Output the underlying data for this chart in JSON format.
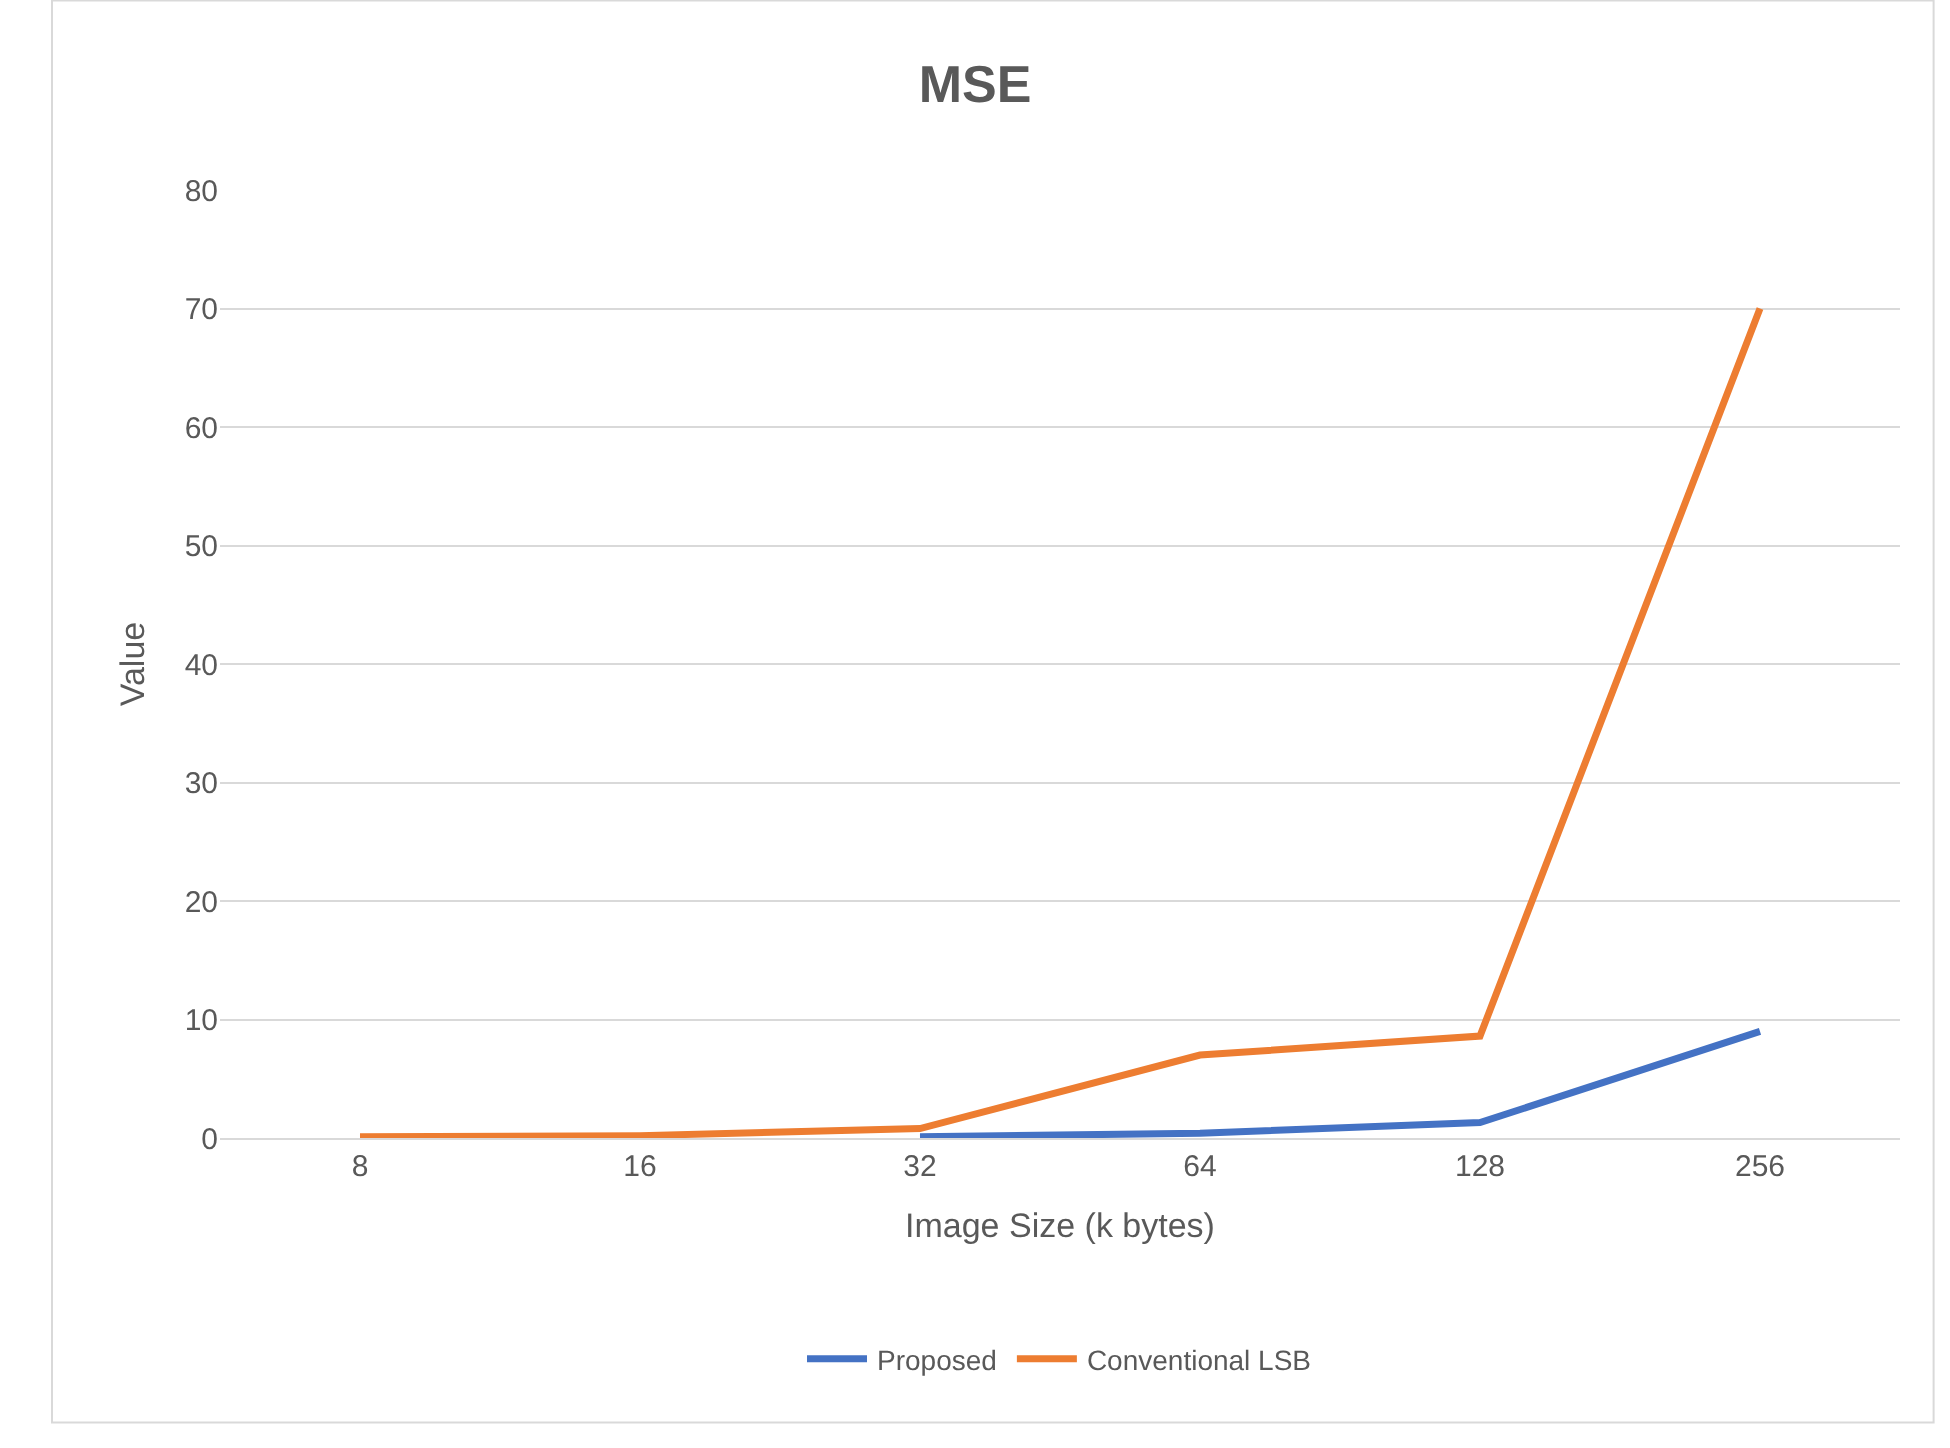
{
  "chart_data": {
    "type": "line",
    "title": "MSE",
    "xlabel": "Image Size (k bytes)",
    "ylabel": "Value",
    "categories": [
      "8",
      "16",
      "32",
      "64",
      "128",
      "256"
    ],
    "series": [
      {
        "name": "Proposed",
        "color": "#4472c4",
        "values": [
          null,
          null,
          0.1,
          0.4,
          1.3,
          9
        ]
      },
      {
        "name": "Conventional LSB",
        "color": "#ed7d31",
        "values": [
          0.1,
          0.2,
          0.8,
          7,
          8.6,
          70
        ]
      }
    ],
    "ylim": [
      0,
      80
    ],
    "yticks": [
      0,
      10,
      20,
      30,
      40,
      50,
      60,
      70,
      80
    ],
    "grid": "y",
    "legend": "bottom",
    "marker": "none",
    "line_style": "solid"
  }
}
